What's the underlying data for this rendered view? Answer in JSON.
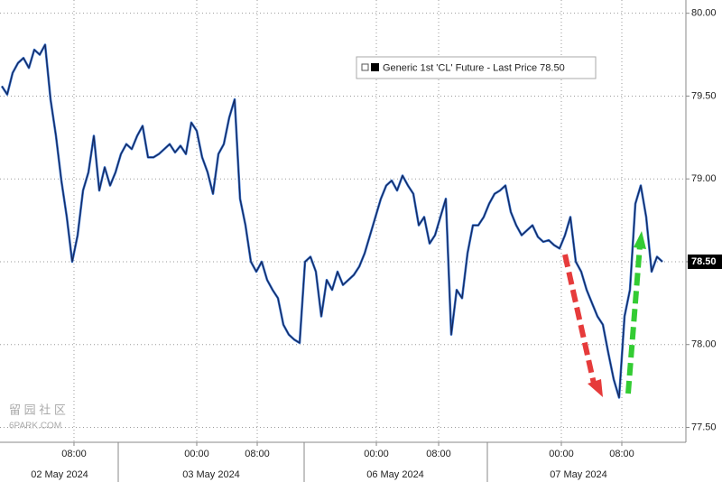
{
  "chart_data": {
    "type": "line",
    "series": [
      {
        "name": "Generic 1st 'CL' Future - Last Price",
        "color": "#16285c",
        "values": [
          79.56,
          79.51,
          79.64,
          79.7,
          79.73,
          79.67,
          79.78,
          79.75,
          79.81,
          79.48,
          79.26,
          78.99,
          78.77,
          78.5,
          78.66,
          78.93,
          79.04,
          79.26,
          78.93,
          79.07,
          78.96,
          79.04,
          79.15,
          79.21,
          79.18,
          79.26,
          79.32,
          79.13,
          79.13,
          79.15,
          79.18,
          79.21,
          79.16,
          79.2,
          79.15,
          79.34,
          79.29,
          79.13,
          79.04,
          78.91,
          79.15,
          79.21,
          79.37,
          79.48,
          78.88,
          78.72,
          78.5,
          78.44,
          78.5,
          78.39,
          78.33,
          78.28,
          78.12,
          78.06,
          78.03,
          78.01,
          78.5,
          78.53,
          78.44,
          78.17,
          78.39,
          78.33,
          78.44,
          78.36,
          78.39,
          78.42,
          78.47,
          78.55,
          78.66,
          78.77,
          78.88,
          78.96,
          78.99,
          78.93,
          79.02,
          78.96,
          78.91,
          78.72,
          78.77,
          78.61,
          78.66,
          78.77,
          78.88,
          78.06,
          78.33,
          78.28,
          78.55,
          78.72,
          78.72,
          78.77,
          78.85,
          78.91,
          78.93,
          78.96,
          78.8,
          78.72,
          78.66,
          78.69,
          78.72,
          78.65,
          78.62,
          78.63,
          78.6,
          78.58,
          78.66,
          78.77,
          78.5,
          78.44,
          78.33,
          78.25,
          78.17,
          78.12,
          77.95,
          77.79,
          77.68,
          78.17,
          78.33,
          78.85,
          78.96,
          78.77,
          78.44,
          78.53,
          78.5
        ],
        "last_value": {
          "value": 78.5,
          "label": "78.50"
        }
      }
    ],
    "ylim": [
      77.41,
      80.08
    ],
    "yticks": [
      {
        "value": 77.5,
        "label": "77.50"
      },
      {
        "value": 78,
        "label": "78.00"
      },
      {
        "value": 78.5,
        "label": "78.50"
      },
      {
        "value": 79,
        "label": "79.00"
      },
      {
        "value": 79.5,
        "label": "79.50"
      },
      {
        "value": 80,
        "label": "80.00"
      }
    ],
    "xlim": [
      -0.333,
      126.333
    ],
    "xticks": [
      {
        "value": 13.33,
        "label": "08:00"
      },
      {
        "value": 36,
        "label": "00:00"
      },
      {
        "value": 47.17,
        "label": "08:00"
      },
      {
        "value": 69.17,
        "label": "00:00"
      },
      {
        "value": 80.67,
        "label": "08:00"
      },
      {
        "value": 103.33,
        "label": "00:00"
      },
      {
        "value": 114.5,
        "label": "08:00"
      }
    ],
    "date_labels": [
      {
        "value": 10.67,
        "label": "02 May 2024"
      },
      {
        "value": 38.67,
        "label": "03 May 2024"
      },
      {
        "value": 72.67,
        "label": "06 May 2024"
      },
      {
        "value": 106.5,
        "label": "07 May 2024"
      }
    ],
    "grid": true,
    "watermark": [
      "留 园 社 区",
      "6PARK.COM"
    ]
  }
}
